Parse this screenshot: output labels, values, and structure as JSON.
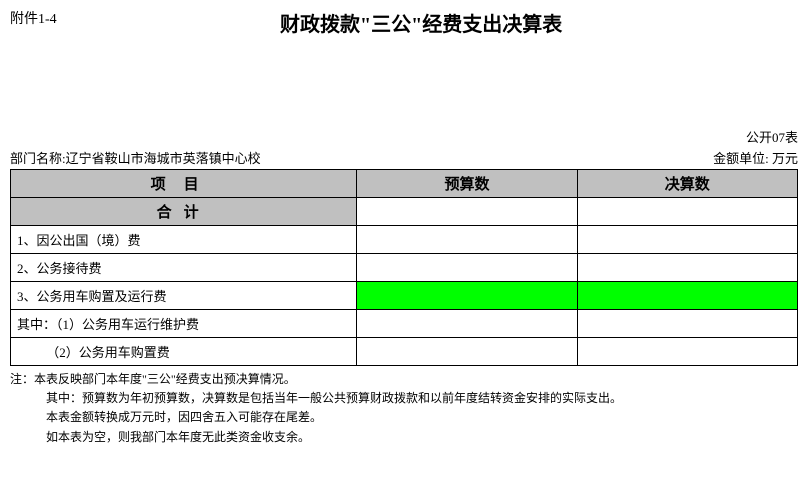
{
  "header": {
    "attachment_label": "附件1-4",
    "title": "财政拨款\"三公\"经费支出决算表"
  },
  "meta": {
    "dept_label": "部门名称:",
    "dept_name": "辽宁省鞍山市海城市英落镇中心校",
    "form_code": "公开07表",
    "unit_label": "金额单位: 万元"
  },
  "table": {
    "columns": [
      "项目",
      "预算数",
      "决算数"
    ],
    "rows": [
      {
        "label": "合计",
        "center": true,
        "letter_space": true,
        "budget": "",
        "final": "",
        "highlight": false
      },
      {
        "label": "1、因公出国（境）费",
        "center": false,
        "budget": "",
        "final": "",
        "highlight": false
      },
      {
        "label": "2、公务接待费",
        "center": false,
        "budget": "",
        "final": "",
        "highlight": false
      },
      {
        "label": "3、公务用车购置及运行费",
        "center": false,
        "budget": "",
        "final": "",
        "highlight": true
      },
      {
        "label": "其中：（1）公务用车运行维护费",
        "center": false,
        "budget": "",
        "final": "",
        "highlight": false
      },
      {
        "label": "         （2）公务用车购置费",
        "center": false,
        "budget": "",
        "final": "",
        "highlight": false
      }
    ]
  },
  "notes": {
    "line1": "注：本表反映部门本年度\"三公\"经费支出预决算情况。",
    "line2": "其中：预算数为年初预算数，决算数是包括当年一般公共预算财政拨款和以前年度结转资金安排的实际支出。",
    "line3": "本表金额转换成万元时，因四舍五入可能存在尾差。",
    "line4": "如本表为空，则我部门本年度无此类资金收支余。"
  },
  "colors": {
    "header_bg": "#c0c0c0",
    "highlight_bg": "#00ff00",
    "border": "#000000",
    "background": "#ffffff",
    "text": "#000000"
  }
}
